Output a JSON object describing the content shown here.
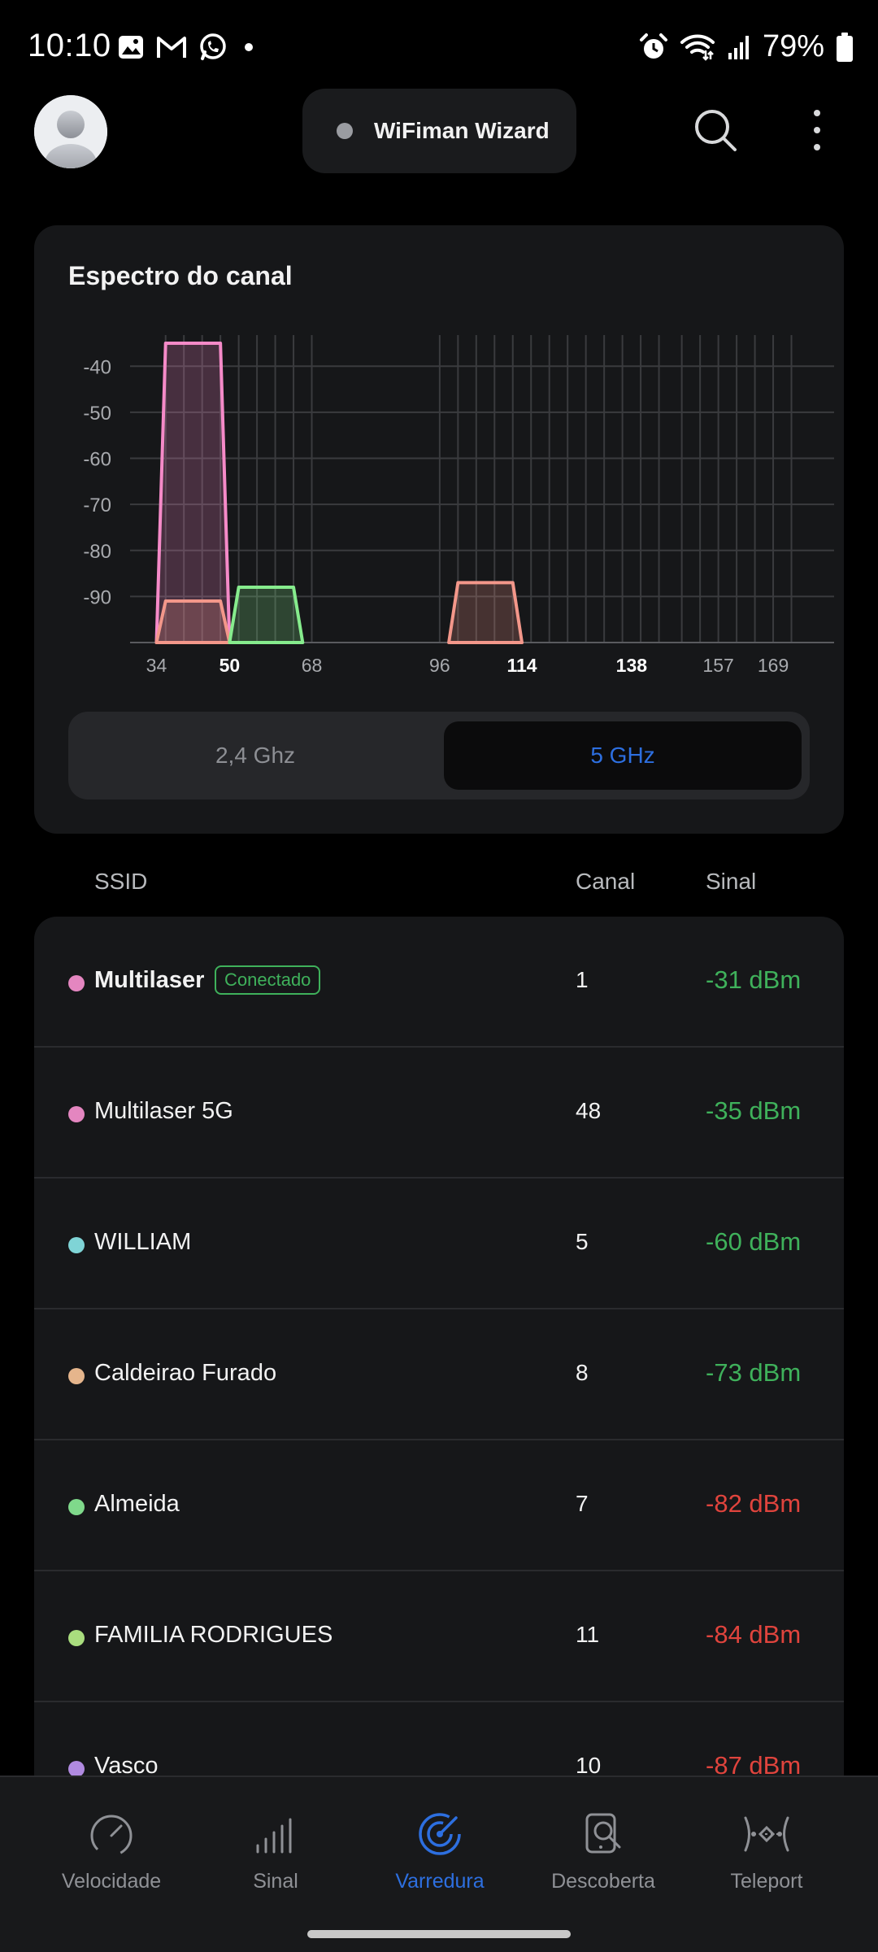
{
  "status_bar": {
    "time": "10:10",
    "battery": "79%",
    "left_icons": [
      "gallery-icon",
      "gmail-icon",
      "whatsapp-icon",
      "dot-icon"
    ],
    "right_icons": [
      "alarm-icon",
      "wifi-icon",
      "cellular-signal-icon",
      "battery-icon"
    ]
  },
  "header": {
    "wizard_label": "WiFiman Wizard"
  },
  "spectrum": {
    "title": "Espectro do canal",
    "band_options": [
      "2,4 Ghz",
      "5 GHz"
    ],
    "selected_band": "5 GHz"
  },
  "chart_data": {
    "type": "area",
    "title": "Espectro do canal",
    "x_tick_labels": [
      "34",
      "50",
      "68",
      "96",
      "114",
      "138",
      "157",
      "169"
    ],
    "x_tick_bold": [
      "50",
      "114",
      "138"
    ],
    "y_tick_labels": [
      "-40",
      "-50",
      "-60",
      "-70",
      "-80",
      "-90"
    ],
    "y_ticks": [
      -40,
      -50,
      -60,
      -70,
      -80,
      -90
    ],
    "ylim": [
      -100,
      -35
    ],
    "xlim": [
      30,
      177
    ],
    "grid": true,
    "channel_gridlines": [
      36,
      40,
      44,
      48,
      52,
      56,
      60,
      64,
      68,
      96,
      100,
      104,
      108,
      112,
      116,
      120,
      124,
      128,
      132,
      136,
      140,
      144,
      149,
      153,
      157,
      161,
      165,
      169,
      173
    ],
    "series": [
      {
        "color": "#f58ac8",
        "x": [
          34,
          36,
          48,
          50
        ],
        "y": [
          -100,
          -35,
          -35,
          -100
        ]
      },
      {
        "color": "#f3978a",
        "x": [
          34,
          36,
          48,
          50
        ],
        "y": [
          -100,
          -91,
          -91,
          -100
        ]
      },
      {
        "color": "#86ec8d",
        "x": [
          50,
          52,
          64,
          66
        ],
        "y": [
          -100,
          -88,
          -88,
          -100
        ]
      },
      {
        "color": "#f3978a",
        "x": [
          98,
          100,
          112,
          114
        ],
        "y": [
          -100,
          -87,
          -87,
          -100
        ]
      }
    ]
  },
  "table": {
    "col_ssid": "SSID",
    "col_channel": "Canal",
    "col_signal": "Sinal",
    "rows": [
      {
        "ssid": "Multilaser",
        "badge": "Conectado",
        "channel": "1",
        "signal": "-31 dBm",
        "dot": "#e486c0",
        "quality": "good"
      },
      {
        "ssid": "Multilaser 5G",
        "channel": "48",
        "signal": "-35 dBm",
        "dot": "#e486c0",
        "quality": "good"
      },
      {
        "ssid": "WILLIAM",
        "channel": "5",
        "signal": "-60 dBm",
        "dot": "#7fd4d6",
        "quality": "good"
      },
      {
        "ssid": "Caldeirao Furado",
        "channel": "8",
        "signal": "-73 dBm",
        "dot": "#e5b58c",
        "quality": "good"
      },
      {
        "ssid": "Almeida",
        "channel": "7",
        "signal": "-82 dBm",
        "dot": "#7fd98b",
        "quality": "bad"
      },
      {
        "ssid": "FAMILIA RODRIGUES",
        "channel": "11",
        "signal": "-84 dBm",
        "dot": "#a9dd7e",
        "quality": "bad"
      },
      {
        "ssid": "Vasco",
        "channel": "10",
        "signal": "-87 dBm",
        "dot": "#b08ae0",
        "quality": "bad"
      }
    ]
  },
  "bottom_nav": {
    "items": [
      {
        "label": "Velocidade",
        "icon": "speedometer-icon"
      },
      {
        "label": "Sinal",
        "icon": "signal-bars-icon"
      },
      {
        "label": "Varredura",
        "icon": "radar-icon",
        "active": true
      },
      {
        "label": "Descoberta",
        "icon": "device-search-icon"
      },
      {
        "label": "Teleport",
        "icon": "teleport-icon"
      }
    ]
  },
  "colors": {
    "accent": "#2d6fe0",
    "good": "#3fb15b",
    "bad": "#e0443d"
  }
}
